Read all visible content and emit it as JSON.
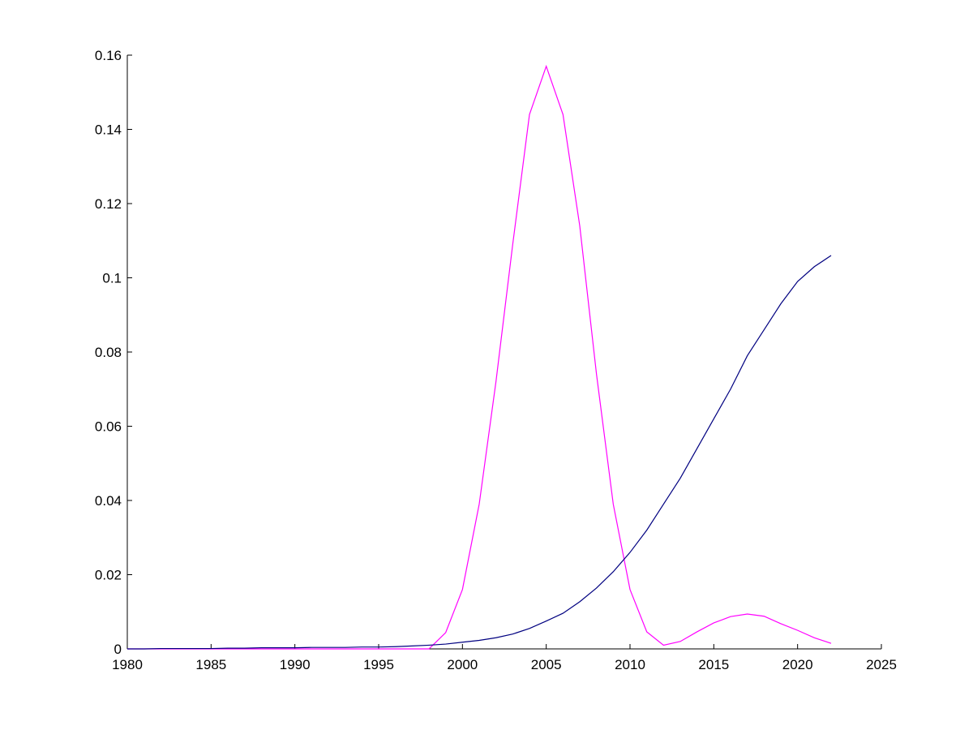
{
  "chart_data": {
    "type": "line",
    "x": [
      1980,
      1981,
      1982,
      1983,
      1984,
      1985,
      1986,
      1987,
      1988,
      1989,
      1990,
      1991,
      1992,
      1993,
      1994,
      1995,
      1996,
      1997,
      1998,
      1999,
      2000,
      2001,
      2002,
      2003,
      2004,
      2005,
      2006,
      2007,
      2008,
      2009,
      2010,
      2011,
      2012,
      2013,
      2014,
      2015,
      2016,
      2017,
      2018,
      2019,
      2020,
      2021,
      2022
    ],
    "series": [
      {
        "color": "#ff00ff",
        "values": [
          0,
          0,
          0,
          0,
          0,
          0,
          0,
          0,
          0,
          0,
          0,
          0,
          0,
          0,
          0,
          0,
          0,
          0,
          0,
          0.0044,
          0.016,
          0.039,
          0.072,
          0.109,
          0.144,
          0.157,
          0.144,
          0.114,
          0.074,
          0.039,
          0.016,
          0.0046,
          0.001,
          0.002,
          0.0046,
          0.007,
          0.0087,
          0.0094,
          0.0088,
          0.0068,
          0.005,
          0.003,
          0.0015
        ]
      },
      {
        "color": "#000080",
        "values": [
          0,
          0,
          0.0001,
          0.0001,
          0.0001,
          0.0001,
          0.0002,
          0.0002,
          0.0003,
          0.0003,
          0.0003,
          0.0004,
          0.0004,
          0.0004,
          0.0005,
          0.0005,
          0.0006,
          0.0008,
          0.001,
          0.0013,
          0.0018,
          0.0023,
          0.003,
          0.004,
          0.0055,
          0.0075,
          0.0096,
          0.0127,
          0.0164,
          0.0208,
          0.026,
          0.032,
          0.039,
          0.046,
          0.054,
          0.062,
          0.07,
          0.079,
          0.086,
          0.093,
          0.099,
          0.103,
          0.106
        ]
      }
    ],
    "xlim": [
      1980,
      2025
    ],
    "xticks": [
      1980,
      1985,
      1990,
      1995,
      2000,
      2005,
      2010,
      2015,
      2020,
      2025
    ],
    "ylim": [
      0,
      0.16
    ],
    "yticks": [
      0,
      0.02,
      0.04,
      0.06,
      0.08,
      0.1,
      0.12,
      0.14,
      0.16
    ]
  }
}
